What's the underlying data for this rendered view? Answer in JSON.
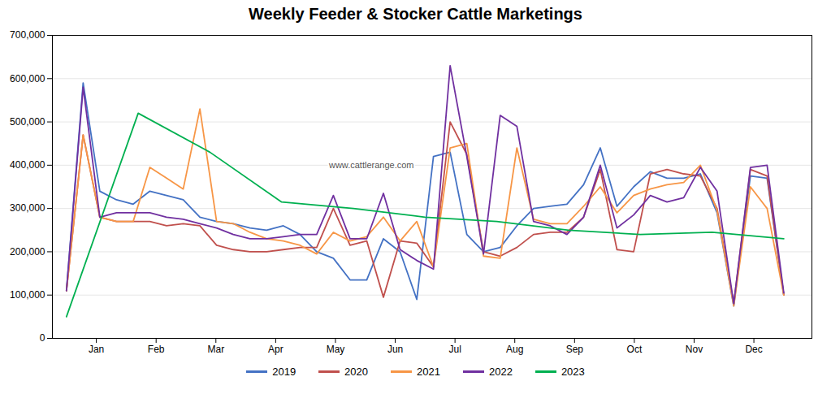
{
  "chart_data": {
    "type": "line",
    "title": "Weekly Feeder & Stocker Cattle Marketings",
    "xlim": [
      -1,
      53
    ],
    "xticks": [
      {
        "value": 2.125,
        "label": "Jan"
      },
      {
        "value": 6.375,
        "label": "Feb"
      },
      {
        "value": 10.625,
        "label": "Mar"
      },
      {
        "value": 14.875,
        "label": "Apr"
      },
      {
        "value": 19.125,
        "label": "May"
      },
      {
        "value": 23.375,
        "label": "Jun"
      },
      {
        "value": 27.625,
        "label": "Jul"
      },
      {
        "value": 31.875,
        "label": "Aug"
      },
      {
        "value": 36.125,
        "label": "Sep"
      },
      {
        "value": 40.375,
        "label": "Oct"
      },
      {
        "value": 44.625,
        "label": "Nov"
      },
      {
        "value": 48.875,
        "label": "Dec"
      }
    ],
    "ylim": [
      0,
      700000
    ],
    "yticks": [
      0,
      {
        "value": 100000,
        "label": "100,000"
      },
      {
        "value": 200000,
        "label": "200,000"
      },
      {
        "value": 300000,
        "label": "300,000"
      },
      {
        "value": 400000,
        "label": "400,000"
      },
      {
        "value": 500000,
        "label": "500,000"
      },
      {
        "value": 600000,
        "label": "600,000"
      },
      {
        "value": 700000,
        "label": "700,000"
      }
    ],
    "grid": true,
    "legend": "bottom",
    "annotations": [
      "www.cattlerange.com"
    ],
    "series": [
      {
        "name": "2019",
        "color": "#4472c4",
        "x": [
          0,
          1.186047,
          2.372093,
          3.55814,
          4.744186,
          5.930233,
          7.116279,
          8.302326,
          9.488372,
          10.674419,
          11.860465,
          13.046512,
          14.232558,
          15.418605,
          16.604651,
          17.790698,
          18.976744,
          20.162791,
          21.348837,
          22.534884,
          23.72093,
          24.906977,
          26.093023,
          27.27907,
          28.465116,
          29.651163,
          30.837209,
          32.023256,
          33.209302,
          34.395349,
          35.581395,
          36.767442,
          37.953488,
          39.139535,
          40.325581,
          41.511628,
          42.697674,
          43.883721,
          45.069767,
          46.255814,
          47.44186,
          48.627907,
          49.813953,
          51
        ],
        "values": [
          110000,
          590000,
          340000,
          320000,
          310000,
          340000,
          330000,
          320000,
          280000,
          270000,
          265000,
          255000,
          250000,
          260000,
          240000,
          200000,
          185000,
          135000,
          135000,
          230000,
          200000,
          90000,
          420000,
          430000,
          240000,
          200000,
          210000,
          260000,
          300000,
          305000,
          310000,
          355000,
          440000,
          305000,
          350000,
          385000,
          370000,
          370000,
          380000,
          290000,
          75000,
          375000,
          370000,
          100000
        ]
      },
      {
        "name": "2020",
        "color": "#c0504d",
        "x": [
          0,
          1.186047,
          2.372093,
          3.55814,
          4.744186,
          5.930233,
          7.116279,
          8.302326,
          9.488372,
          10.674419,
          11.860465,
          13.046512,
          14.232558,
          15.418605,
          16.604651,
          17.790698,
          18.976744,
          20.162791,
          21.348837,
          22.534884,
          23.72093,
          24.906977,
          26.093023,
          27.27907,
          28.465116,
          29.651163,
          30.837209,
          32.023256,
          33.209302,
          34.395349,
          35.581395,
          36.767442,
          37.953488,
          39.139535,
          40.325581,
          41.511628,
          42.697674,
          43.883721,
          45.069767,
          46.255814,
          47.44186,
          48.627907,
          49.813953,
          51
        ],
        "values": [
          110000,
          470000,
          280000,
          270000,
          270000,
          270000,
          260000,
          265000,
          260000,
          215000,
          205000,
          200000,
          200000,
          205000,
          210000,
          210000,
          300000,
          215000,
          225000,
          95000,
          225000,
          220000,
          165000,
          500000,
          425000,
          200000,
          190000,
          210000,
          240000,
          245000,
          245000,
          280000,
          390000,
          205000,
          200000,
          380000,
          390000,
          380000,
          375000,
          300000,
          80000,
          390000,
          375000,
          100000
        ]
      },
      {
        "name": "2021",
        "color": "#f79646",
        "x": [
          0,
          1.186047,
          2.372093,
          3.55814,
          4.744186,
          5.930233,
          7.116279,
          8.302326,
          9.488372,
          10.674419,
          11.860465,
          13.046512,
          14.232558,
          15.418605,
          16.604651,
          17.790698,
          18.976744,
          20.162791,
          21.348837,
          22.534884,
          23.72093,
          24.906977,
          26.093023,
          27.27907,
          28.465116,
          29.651163,
          30.837209,
          32.023256,
          33.209302,
          34.395349,
          35.581395,
          36.767442,
          37.953488,
          39.139535,
          40.325581,
          41.511628,
          42.697674,
          43.883721,
          45.069767,
          46.255814,
          47.44186,
          48.627907,
          49.813953,
          51
        ],
        "values": [
          110000,
          470000,
          280000,
          270000,
          270000,
          395000,
          370000,
          345000,
          530000,
          270000,
          265000,
          245000,
          230000,
          225000,
          215000,
          195000,
          245000,
          225000,
          235000,
          280000,
          225000,
          270000,
          165000,
          440000,
          450000,
          190000,
          185000,
          440000,
          275000,
          265000,
          265000,
          305000,
          350000,
          290000,
          330000,
          345000,
          355000,
          360000,
          400000,
          295000,
          75000,
          350000,
          300000,
          100000
        ]
      },
      {
        "name": "2022",
        "color": "#7030a0",
        "x": [
          0,
          1.186047,
          2.372093,
          3.55814,
          4.744186,
          5.930233,
          7.116279,
          8.302326,
          9.488372,
          10.674419,
          11.860465,
          13.046512,
          14.232558,
          15.418605,
          16.604651,
          17.790698,
          18.976744,
          20.162791,
          21.348837,
          22.534884,
          23.72093,
          24.906977,
          26.093023,
          27.27907,
          28.465116,
          29.651163,
          30.837209,
          32.023256,
          33.209302,
          34.395349,
          35.581395,
          36.767442,
          37.953488,
          39.139535,
          40.325581,
          41.511628,
          42.697674,
          43.883721,
          45.069767,
          46.255814,
          47.44186,
          48.627907,
          49.813953,
          51
        ],
        "values": [
          110000,
          580000,
          280000,
          290000,
          290000,
          290000,
          280000,
          275000,
          265000,
          255000,
          240000,
          230000,
          230000,
          235000,
          240000,
          240000,
          330000,
          230000,
          230000,
          335000,
          205000,
          180000,
          160000,
          630000,
          420000,
          195000,
          515000,
          490000,
          270000,
          260000,
          240000,
          280000,
          400000,
          255000,
          285000,
          330000,
          315000,
          325000,
          395000,
          340000,
          80000,
          395000,
          400000,
          105000
        ]
      },
      {
        "name": "2023",
        "color": "#00b050",
        "x": [
          0,
          5.1,
          10.2,
          15.3,
          20.4,
          25.5,
          30.6,
          35.7,
          40.8,
          45.9,
          51
        ],
        "values": [
          50000,
          520000,
          430000,
          315000,
          300000,
          280000,
          270000,
          250000,
          240000,
          245000,
          230000
        ]
      }
    ]
  }
}
